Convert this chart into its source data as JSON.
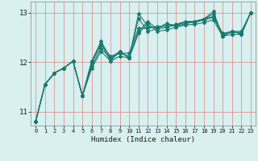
{
  "title": "",
  "xlabel": "Humidex (Indice chaleur)",
  "ylabel": "",
  "xlim": [
    -0.5,
    23.5
  ],
  "ylim": [
    10.72,
    13.22
  ],
  "yticks": [
    11,
    12,
    13
  ],
  "xtick_count": 24,
  "bg_color": "#d8f0f0",
  "line_color": "#1a7a6e",
  "grid_color": "#e08080",
  "lines": [
    [
      10.8,
      11.55,
      11.78,
      11.88,
      12.02,
      11.32,
      11.88,
      12.22,
      12.02,
      12.12,
      12.08,
      12.58,
      12.78,
      12.62,
      12.65,
      12.7,
      12.75,
      12.76,
      12.8,
      12.85,
      12.52,
      12.56,
      12.56,
      13.0
    ],
    [
      10.8,
      11.55,
      11.78,
      11.88,
      12.02,
      11.32,
      11.92,
      12.28,
      12.08,
      12.18,
      12.12,
      12.62,
      12.82,
      12.67,
      12.7,
      12.75,
      12.8,
      12.8,
      12.85,
      12.9,
      12.56,
      12.6,
      12.6,
      13.0
    ],
    [
      10.8,
      11.55,
      11.78,
      11.88,
      12.02,
      11.32,
      11.98,
      12.35,
      12.12,
      12.18,
      12.18,
      12.68,
      12.68,
      12.72,
      12.72,
      12.76,
      12.82,
      12.82,
      12.87,
      12.92,
      12.58,
      12.62,
      12.62,
      13.0
    ],
    [
      10.8,
      11.55,
      11.78,
      11.88,
      12.02,
      11.32,
      12.02,
      12.42,
      12.08,
      12.22,
      12.08,
      12.98,
      12.72,
      12.68,
      12.78,
      12.72,
      12.77,
      12.82,
      12.87,
      13.02,
      12.52,
      12.62,
      12.57,
      13.0
    ],
    [
      10.8,
      11.55,
      11.78,
      11.88,
      12.02,
      11.32,
      12.02,
      12.38,
      12.02,
      12.22,
      12.08,
      12.88,
      12.62,
      12.67,
      12.77,
      12.74,
      12.8,
      12.82,
      12.87,
      12.97,
      12.52,
      12.62,
      12.57,
      13.0
    ]
  ]
}
